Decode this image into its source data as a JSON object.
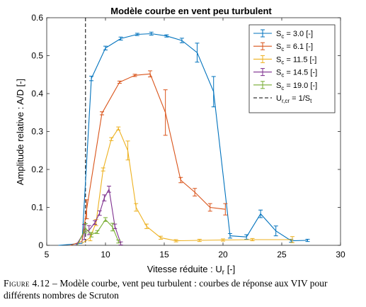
{
  "chart_data": {
    "type": "line",
    "title": "Modèle courbe en vent peu turbulent",
    "xlabel": "Vitesse réduite : U_r [-]",
    "ylabel": "Amplitude relative : A/D [-]",
    "xlim": [
      5,
      30
    ],
    "ylim": [
      0,
      0.6
    ],
    "xticks": [
      5,
      10,
      15,
      20,
      25,
      30
    ],
    "yticks": [
      0,
      0.1,
      0.2,
      0.3,
      0.4,
      0.5,
      0.6
    ],
    "ytick_labels": [
      "0",
      "0.1",
      "0.2",
      "0.3",
      "0.4",
      "0.5",
      "0.6"
    ],
    "grid": false,
    "legend_position": "top-right",
    "vline": {
      "x": 8.3,
      "label": "U_r,cr = 1/S_t",
      "style": "dashed",
      "color": "#000000"
    },
    "series": [
      {
        "name": "S_c = 3.0 [-]",
        "color": "#0072BD",
        "x": [
          6,
          8,
          8.8,
          10,
          11.3,
          12.7,
          13.9,
          15.2,
          16.5,
          17.8,
          19.2,
          20.6,
          22,
          23.2,
          24.5,
          25.8,
          27.2
        ],
        "y": [
          0,
          0.005,
          0.44,
          0.52,
          0.545,
          0.556,
          0.558,
          0.552,
          0.54,
          0.508,
          0.405,
          0.025,
          0.022,
          0.083,
          0.038,
          0.012,
          0.013
        ],
        "err": [
          0,
          0,
          0.006,
          0.005,
          0.004,
          0.003,
          0.004,
          0.003,
          0.006,
          0.025,
          0.04,
          0.006,
          0.006,
          0.01,
          0.013,
          0.004,
          0.003
        ]
      },
      {
        "name": "S_c = 6.1 [-]",
        "color": "#D95319",
        "x": [
          7,
          8,
          8.4,
          9.7,
          11.2,
          12.5,
          13.8,
          15.1,
          16.4,
          17.6,
          18.9,
          20.2
        ],
        "y": [
          0,
          0.01,
          0.095,
          0.348,
          0.43,
          0.448,
          0.452,
          0.35,
          0.172,
          0.14,
          0.1,
          0.095
        ],
        "err": [
          0,
          0,
          0.025,
          0.004,
          0.003,
          0.003,
          0.008,
          0.06,
          0.007,
          0.01,
          0.01,
          0.015
        ]
      },
      {
        "name": "S_c = 11.5 [-]",
        "color": "#EDB120",
        "x": [
          8,
          8.7,
          9.2,
          9.8,
          10.5,
          11.1,
          11.9,
          12.6,
          13.5,
          14.7,
          16,
          18,
          20,
          22.5,
          25.9
        ],
        "y": [
          0.005,
          0.02,
          0.06,
          0.2,
          0.28,
          0.308,
          0.25,
          0.1,
          0.05,
          0.02,
          0.012,
          0.013,
          0.014,
          0.015,
          0.015
        ],
        "err": [
          0,
          0.008,
          0.008,
          0.004,
          0.004,
          0.004,
          0.025,
          0.01,
          0.006,
          0.004,
          0.003,
          0.003,
          0.003,
          0.003,
          0.008
        ]
      },
      {
        "name": "S_c = 14.5 [-]",
        "color": "#7E2F8E",
        "x": [
          7.5,
          8.2,
          8.6,
          9.1,
          9.5,
          9.9,
          10.3,
          10.8,
          11.3
        ],
        "y": [
          0,
          0.035,
          0.04,
          0.06,
          0.085,
          0.125,
          0.148,
          0.05,
          0.005
        ],
        "err": [
          0,
          0.02,
          0.012,
          0.005,
          0.006,
          0.008,
          0.008,
          0.006,
          0.004
        ]
      },
      {
        "name": "S_c = 19.0 [-]",
        "color": "#77AC30",
        "x": [
          7.6,
          8.3,
          8.8,
          9.3,
          10,
          10.6,
          11.1
        ],
        "y": [
          0,
          0.045,
          0.028,
          0.035,
          0.068,
          0.048,
          0.01
        ],
        "err": [
          0,
          0.012,
          0.006,
          0.004,
          0.005,
          0.01,
          0.004
        ]
      }
    ]
  },
  "legend": [
    {
      "base": "S",
      "sub": "c",
      "suffix": " = 3.0 [-]"
    },
    {
      "base": "S",
      "sub": "c",
      "suffix": " = 6.1 [-]"
    },
    {
      "base": "S",
      "sub": "c",
      "suffix": " = 11.5 [-]"
    },
    {
      "base": "S",
      "sub": "c",
      "suffix": " = 14.5 [-]"
    },
    {
      "base": "S",
      "sub": "c",
      "suffix": " = 19.0 [-]"
    },
    {
      "pre": "U",
      "sub": "r,cr",
      "mid": " = 1/S",
      "sub2": "t"
    }
  ],
  "axis_text": {
    "xlabel_main": "Vitesse réduite : U",
    "xlabel_sub": "r",
    "xlabel_end": " [-]"
  },
  "caption": {
    "label": "Figure 4.12 –",
    "text": " Modèle courbe, vent peu turbulent : courbes de réponse aux VIV pour différents nombres de Scruton"
  }
}
